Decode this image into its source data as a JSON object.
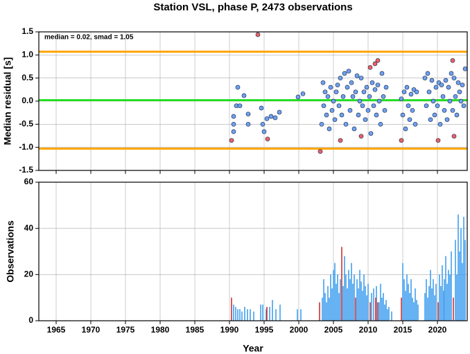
{
  "chart_data": [
    {
      "type": "scatter",
      "title": "Station VSL, phase P, 2473 observations",
      "ylabel": "Median residual [s]",
      "annotation": "median = 0.02, smad = 1.05",
      "xlim": [
        1962.5,
        2024.3
      ],
      "xticks": [
        1965,
        1970,
        1975,
        1980,
        1985,
        1990,
        1995,
        2000,
        2005,
        2010,
        2015,
        2020
      ],
      "xtick_labels": false,
      "ylim": [
        -1.5,
        1.5
      ],
      "yticks": [
        {
          "value": -1.5,
          "label": "-1.5"
        },
        {
          "value": -1,
          "label": "-1.0"
        },
        -0.5,
        {
          "value": 0,
          "label": "0.0"
        },
        0.5,
        {
          "value": 1,
          "label": "1.0"
        },
        1.5
      ],
      "grid": true,
      "hlines": [
        {
          "value": 0.02,
          "color": "#22dd22"
        },
        {
          "value": 1.07,
          "color": "#ffa500"
        },
        {
          "value": -1.03,
          "color": "#ffa500"
        }
      ],
      "series": [
        {
          "color": "#6fa0f0",
          "x": [
            1990.6,
            1990.6,
            1990.6,
            1991.0,
            1991.2,
            1991.5,
            1992.1,
            1992.7,
            1992.7,
            1994.6,
            1994.8,
            1995.0,
            1995.4,
            1996.0,
            1996.6,
            1997.2,
            1999.9,
            2000.6,
            2003.3,
            2003.5,
            2003.6,
            2003.8,
            2004.0,
            2004.2,
            2004.4,
            2004.6,
            2004.8,
            2005.0,
            2005.2,
            2005.4,
            2005.6,
            2005.8,
            2006.0,
            2006.2,
            2006.4,
            2006.6,
            2006.8,
            2007.0,
            2007.2,
            2007.4,
            2007.6,
            2007.8,
            2008.0,
            2008.2,
            2008.4,
            2008.6,
            2008.8,
            2009.0,
            2009.2,
            2009.4,
            2009.6,
            2009.8,
            2010.0,
            2010.2,
            2010.4,
            2010.6,
            2010.8,
            2011.0,
            2011.2,
            2011.4,
            2011.6,
            2011.8,
            2012.0,
            2012.2,
            2012.4,
            2012.6,
            2014.8,
            2015.0,
            2015.2,
            2015.4,
            2015.6,
            2015.8,
            2016.0,
            2016.2,
            2016.4,
            2016.6,
            2016.8,
            2017.0,
            2018.2,
            2018.4,
            2018.6,
            2018.8,
            2019.0,
            2019.2,
            2019.4,
            2019.6,
            2019.8,
            2020.0,
            2020.2,
            2020.4,
            2020.6,
            2020.8,
            2021.0,
            2021.2,
            2021.4,
            2021.6,
            2021.8,
            2022.0,
            2022.2,
            2022.4,
            2022.6,
            2022.8,
            2023.0,
            2023.2,
            2023.4,
            2023.6,
            2023.8,
            2024.0
          ],
          "values": [
            -0.33,
            -0.5,
            -0.66,
            -0.1,
            0.3,
            -0.1,
            0.12,
            -0.28,
            -0.5,
            -0.15,
            -0.5,
            -0.66,
            -0.38,
            -0.33,
            -0.36,
            -0.24,
            0.09,
            0.16,
            -0.5,
            0.4,
            -0.1,
            0.2,
            -0.3,
            0.1,
            -0.6,
            0.3,
            -0.2,
            0.0,
            -0.4,
            0.2,
            0.35,
            -0.1,
            0.5,
            -0.3,
            0.1,
            0.6,
            -0.5,
            0.3,
            0.65,
            -0.2,
            0.4,
            0.1,
            -0.6,
            0.2,
            0.55,
            -0.3,
            0.0,
            0.5,
            -0.1,
            0.2,
            -0.4,
            0.3,
            -0.2,
            0.1,
            -0.7,
            0.4,
            -0.1,
            0.25,
            -0.3,
            0.35,
            0.0,
            -0.5,
            0.6,
            0.1,
            -0.2,
            0.3,
            0.05,
            -0.3,
            0.2,
            -0.6,
            0.3,
            -0.1,
            -0.4,
            0.15,
            -0.2,
            0.25,
            -0.5,
            0.2,
            0.5,
            -0.1,
            0.6,
            0.2,
            -0.4,
            0.45,
            0.0,
            -0.3,
            0.3,
            -0.1,
            0.4,
            -0.5,
            0.35,
            0.1,
            -0.2,
            0.45,
            -0.4,
            0.3,
            0.0,
            0.6,
            -0.2,
            0.5,
            0.1,
            -0.3,
            0.4,
            0.2,
            0.0,
            0.35,
            -0.1,
            0.7
          ]
        },
        {
          "color": "#f06060",
          "x": [
            1990.3,
            1994.1,
            1995.5,
            2003.1,
            2006.0,
            2009.0,
            2010.3,
            2011.0,
            2011.4,
            2014.8,
            2020.1,
            2022.2,
            2022.4
          ],
          "values": [
            -0.85,
            1.44,
            -0.82,
            -1.09,
            -0.85,
            -0.76,
            0.73,
            0.81,
            0.88,
            -0.85,
            -0.85,
            0.88,
            -0.76
          ]
        }
      ]
    },
    {
      "type": "bar",
      "ylabel": "Observations",
      "xlabel": "Year",
      "xlim": [
        1962.5,
        2024.3
      ],
      "xticks": [
        1965,
        1970,
        1975,
        1980,
        1985,
        1990,
        1995,
        2000,
        2005,
        2010,
        2015,
        2020
      ],
      "xtick_labels": true,
      "ylim": [
        0,
        60
      ],
      "yticks": [
        0,
        20,
        40,
        60
      ],
      "grid": true,
      "series": [
        {
          "color": "#3399ee",
          "x": [
            1990.6,
            1990.9,
            1991.2,
            1991.5,
            1991.8,
            1992.2,
            1992.6,
            1993.0,
            1993.5,
            1994.5,
            1994.8,
            1995.3,
            1995.8,
            1996.2,
            1996.7,
            1997.3,
            1999.8,
            2000.3,
            2003.4,
            2003.6,
            2003.8,
            2004.0,
            2004.2,
            2004.4,
            2004.6,
            2004.8,
            2005.0,
            2005.2,
            2005.4,
            2005.6,
            2005.8,
            2006.0,
            2006.4,
            2006.6,
            2006.8,
            2007.0,
            2007.2,
            2007.4,
            2007.6,
            2007.8,
            2008.0,
            2008.4,
            2008.6,
            2008.8,
            2009.0,
            2009.2,
            2009.4,
            2009.6,
            2009.8,
            2010.0,
            2010.5,
            2010.8,
            2011.2,
            2011.6,
            2011.8,
            2012.0,
            2012.2,
            2012.4,
            2012.6,
            2012.8,
            2013.0,
            2013.4,
            2015.0,
            2015.2,
            2015.4,
            2015.6,
            2015.8,
            2016.0,
            2016.2,
            2016.4,
            2016.6,
            2016.8,
            2017.0,
            2017.2,
            2018.2,
            2018.4,
            2018.6,
            2018.8,
            2019.0,
            2019.2,
            2019.4,
            2019.6,
            2019.8,
            2020.3,
            2020.5,
            2020.7,
            2020.9,
            2021.0,
            2021.2,
            2021.4,
            2021.6,
            2021.8,
            2022.0,
            2022.6,
            2022.8,
            2023.0,
            2023.2,
            2023.4,
            2023.6,
            2023.8,
            2024.0
          ],
          "values": [
            7,
            6,
            5,
            5,
            4,
            6,
            5,
            5,
            4,
            7,
            7,
            5,
            6,
            9,
            5,
            7,
            5,
            5,
            10,
            18,
            12,
            8,
            15,
            10,
            20,
            14,
            22,
            25,
            16,
            20,
            12,
            18,
            15,
            28,
            20,
            14,
            22,
            18,
            25,
            16,
            20,
            18,
            14,
            22,
            17,
            13,
            20,
            15,
            11,
            16,
            12,
            14,
            15,
            8,
            16,
            10,
            12,
            7,
            9,
            5,
            6,
            4,
            25,
            18,
            13,
            20,
            16,
            12,
            18,
            10,
            8,
            14,
            9,
            7,
            12,
            18,
            10,
            15,
            22,
            14,
            18,
            11,
            16,
            20,
            15,
            24,
            13,
            18,
            28,
            16,
            22,
            20,
            30,
            35,
            20,
            46,
            30,
            40,
            25,
            45,
            35
          ]
        },
        {
          "color": "#cc2222",
          "x": [
            1990.3,
            1995.4,
            2003.0,
            2006.2,
            2008.2,
            2010.3,
            2011.1,
            2011.4,
            2014.8,
            2020.1,
            2022.3
          ],
          "values": [
            10,
            6,
            8,
            32,
            10,
            8,
            10,
            8,
            10,
            8,
            10
          ]
        }
      ]
    }
  ]
}
